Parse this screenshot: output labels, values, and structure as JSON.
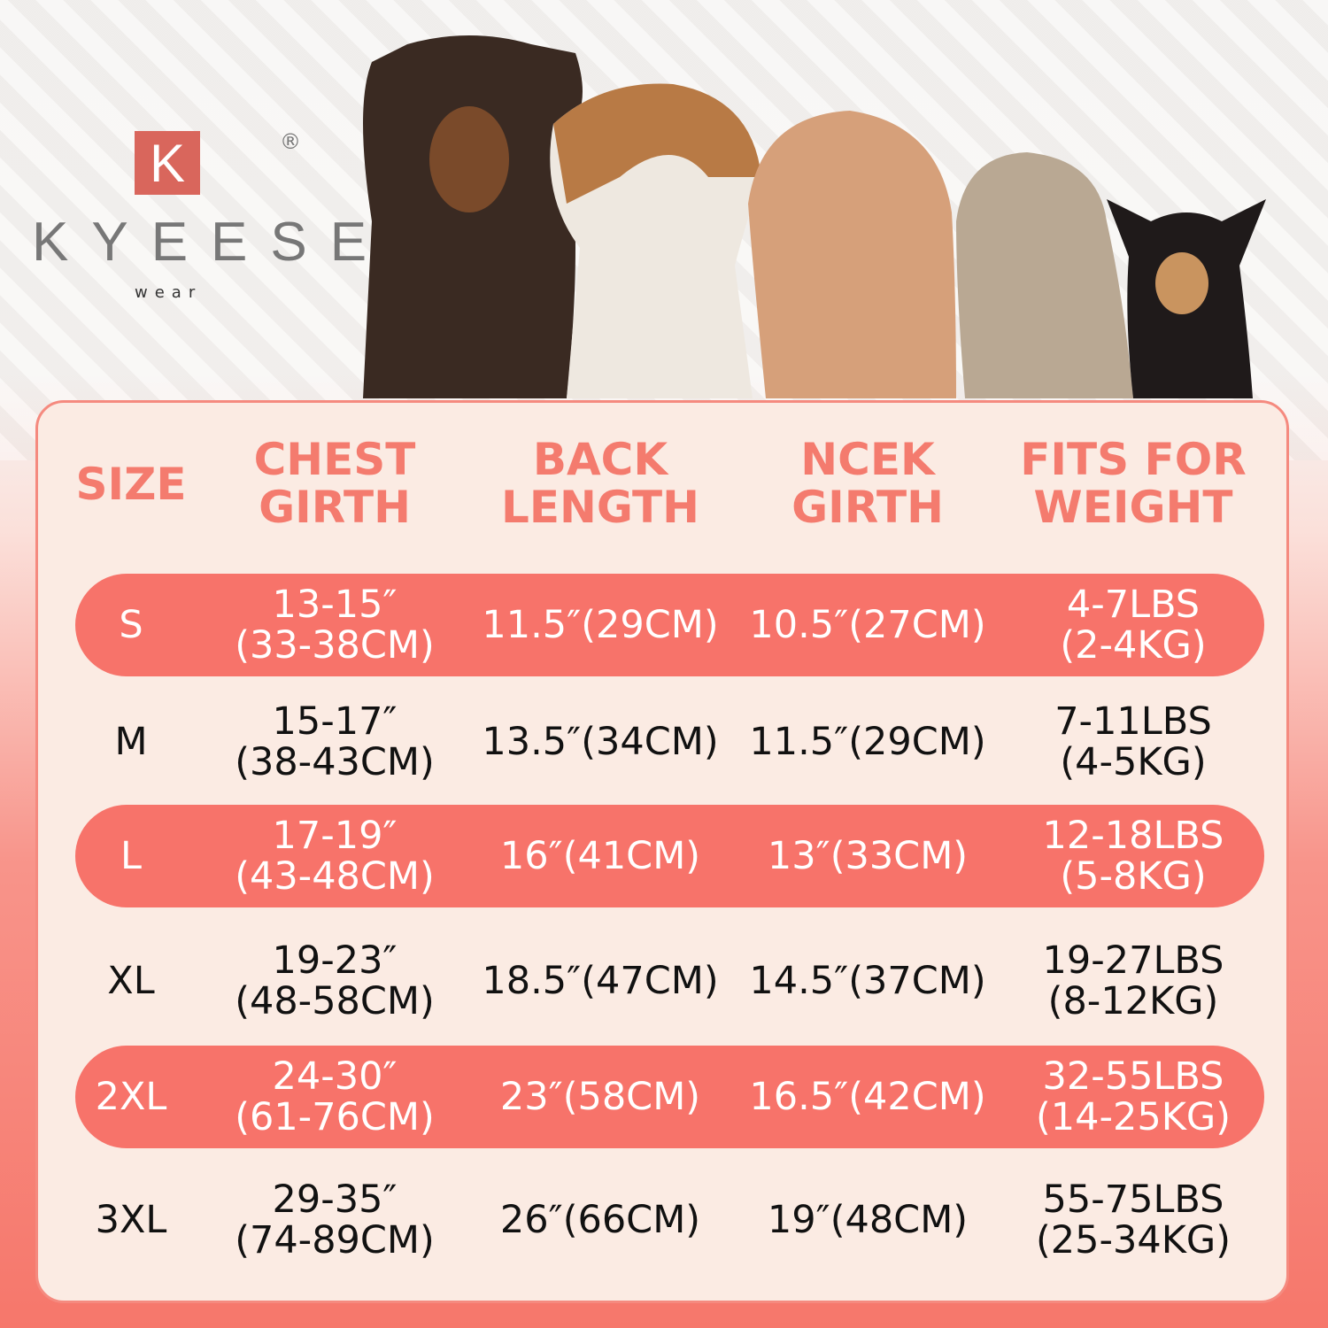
{
  "brand": {
    "mark": "K",
    "name": "KYEESE",
    "sub": "wear",
    "registered": "®"
  },
  "colors": {
    "accent": "#f7736a",
    "panel": "#fbebe3",
    "header_text": "#f47b6e"
  },
  "table": {
    "headers": [
      [
        "SIZE"
      ],
      [
        "CHEST",
        "GIRTH"
      ],
      [
        "BACK",
        "LENGTH"
      ],
      [
        "NCEK",
        "GIRTH"
      ],
      [
        "FITS FOR",
        "WEIGHT"
      ]
    ],
    "rows": [
      {
        "size": "S",
        "chest": [
          "13-15″",
          "(33-38CM)"
        ],
        "back": "11.5″(29CM)",
        "neck": "10.5″(27CM)",
        "weight": [
          "4-7LBS",
          "(2-4KG)"
        ],
        "highlight": true
      },
      {
        "size": "M",
        "chest": [
          "15-17″",
          "(38-43CM)"
        ],
        "back": "13.5″(34CM)",
        "neck": "11.5″(29CM)",
        "weight": [
          "7-11LBS",
          "(4-5KG)"
        ],
        "highlight": false
      },
      {
        "size": "L",
        "chest": [
          "17-19″",
          "(43-48CM)"
        ],
        "back": "16″(41CM)",
        "neck": "13″(33CM)",
        "weight": [
          "12-18LBS",
          "(5-8KG)"
        ],
        "highlight": true
      },
      {
        "size": "XL",
        "chest": [
          "19-23″",
          "(48-58CM)"
        ],
        "back": "18.5″(47CM)",
        "neck": "14.5″(37CM)",
        "weight": [
          "19-27LBS",
          "(8-12KG)"
        ],
        "highlight": false
      },
      {
        "size": "2XL",
        "chest": [
          "24-30″",
          "(61-76CM)"
        ],
        "back": "23″(58CM)",
        "neck": "16.5″(42CM)",
        "weight": [
          "32-55LBS",
          "(14-25KG)"
        ],
        "highlight": true
      },
      {
        "size": "3XL",
        "chest": [
          "29-35″",
          "(74-89CM)"
        ],
        "back": "26″(66CM)",
        "neck": "19″(48CM)",
        "weight": [
          "55-75LBS",
          "(25-34KG)"
        ],
        "highlight": false
      }
    ]
  }
}
